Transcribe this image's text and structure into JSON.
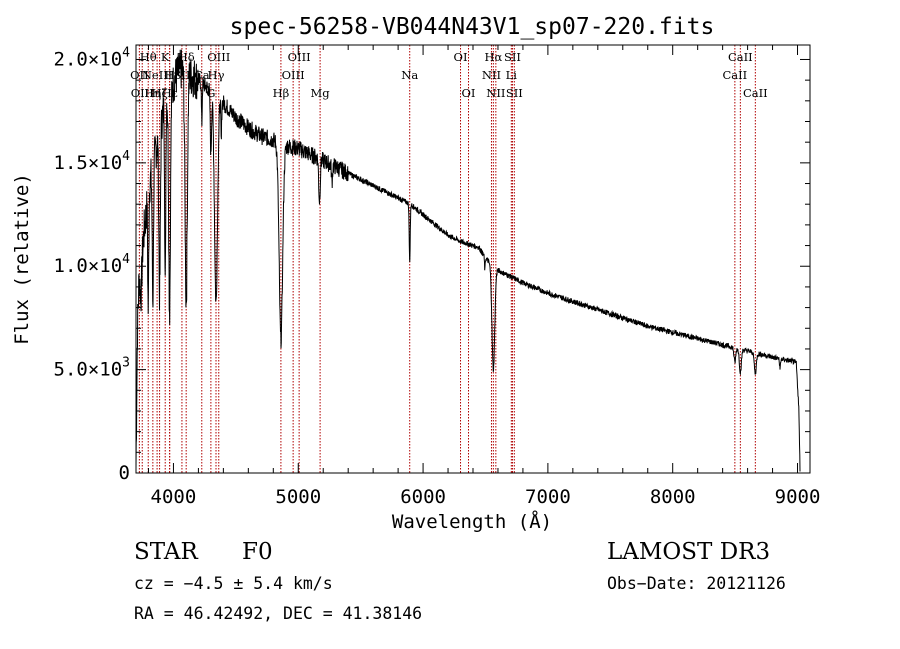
{
  "chart_data": {
    "type": "line",
    "title": "spec-56258-VB044N43V1_sp07-220.fits",
    "xlabel": "Wavelength (Å)",
    "ylabel": "Flux (relative)",
    "xlim": [
      3700,
      9100
    ],
    "ylim": [
      0,
      20700
    ],
    "xticks": [
      {
        "v": 4000,
        "label": "4000"
      },
      {
        "v": 5000,
        "label": "5000"
      },
      {
        "v": 6000,
        "label": "6000"
      },
      {
        "v": 7000,
        "label": "7000"
      },
      {
        "v": 8000,
        "label": "8000"
      },
      {
        "v": 9000,
        "label": "9000"
      }
    ],
    "yticks": [
      {
        "v": 0,
        "mant": "0",
        "exp": ""
      },
      {
        "v": 5000,
        "mant": "5.0×10",
        "exp": "3"
      },
      {
        "v": 10000,
        "mant": "1.0×10",
        "exp": "4"
      },
      {
        "v": 15000,
        "mant": "1.5×10",
        "exp": "4"
      },
      {
        "v": 20000,
        "mant": "2.0×10",
        "exp": "4"
      }
    ],
    "continuum": [
      [
        3700,
        200
      ],
      [
        3712,
        7000
      ],
      [
        3725,
        9500
      ],
      [
        3740,
        8500
      ],
      [
        3755,
        11000
      ],
      [
        3770,
        12000
      ],
      [
        3790,
        13000
      ],
      [
        3810,
        14000
      ],
      [
        3840,
        15000
      ],
      [
        3870,
        16000
      ],
      [
        3900,
        17000
      ],
      [
        3940,
        18000
      ],
      [
        3980,
        18500
      ],
      [
        4020,
        19200
      ],
      [
        4060,
        19500
      ],
      [
        4120,
        19300
      ],
      [
        4200,
        19000
      ],
      [
        4300,
        18500
      ],
      [
        4400,
        17900
      ],
      [
        4500,
        17200
      ],
      [
        4600,
        16700
      ],
      [
        4700,
        16300
      ],
      [
        4800,
        16100
      ],
      [
        4870,
        15900
      ],
      [
        4920,
        15800
      ],
      [
        5000,
        15700
      ],
      [
        5100,
        15400
      ],
      [
        5200,
        15100
      ],
      [
        5300,
        14800
      ],
      [
        5400,
        14500
      ],
      [
        5500,
        14200
      ],
      [
        5600,
        13900
      ],
      [
        5700,
        13600
      ],
      [
        5800,
        13300
      ],
      [
        5900,
        13000
      ],
      [
        6000,
        12500
      ],
      [
        6100,
        12000
      ],
      [
        6200,
        11500
      ],
      [
        6300,
        11200
      ],
      [
        6400,
        11000
      ],
      [
        6450,
        10900
      ],
      [
        6500,
        10400
      ],
      [
        6560,
        10000
      ],
      [
        6600,
        9800
      ],
      [
        6700,
        9500
      ],
      [
        6800,
        9200
      ],
      [
        7000,
        8700
      ],
      [
        7200,
        8300
      ],
      [
        7400,
        7900
      ],
      [
        7600,
        7500
      ],
      [
        7800,
        7100
      ],
      [
        8000,
        6800
      ],
      [
        8200,
        6500
      ],
      [
        8400,
        6200
      ],
      [
        8600,
        5900
      ],
      [
        8800,
        5600
      ],
      [
        8960,
        5400
      ],
      [
        8990,
        5300
      ],
      [
        9010,
        3200
      ],
      [
        9020,
        200
      ]
    ],
    "absorption": [
      {
        "c": 3798,
        "d": 5500,
        "w": 4
      },
      {
        "c": 3835,
        "d": 6500,
        "w": 5
      },
      {
        "c": 3889,
        "d": 8000,
        "w": 6
      },
      {
        "c": 3934,
        "d": 9000,
        "w": 4
      },
      {
        "c": 3969,
        "d": 10500,
        "w": 7
      },
      {
        "c": 4102,
        "d": 11000,
        "w": 9
      },
      {
        "c": 4227,
        "d": 2000,
        "w": 3
      },
      {
        "c": 4300,
        "d": 3000,
        "w": 5
      },
      {
        "c": 4341,
        "d": 10000,
        "w": 12
      },
      {
        "c": 4383,
        "d": 2000,
        "w": 3
      },
      {
        "c": 4861,
        "d": 9500,
        "w": 14
      },
      {
        "c": 5170,
        "d": 2000,
        "w": 6
      },
      {
        "c": 5270,
        "d": 800,
        "w": 4
      },
      {
        "c": 5893,
        "d": 2800,
        "w": 4
      },
      {
        "c": 6495,
        "d": 600,
        "w": 3
      },
      {
        "c": 6563,
        "d": 5000,
        "w": 11
      },
      {
        "c": 8498,
        "d": 700,
        "w": 7
      },
      {
        "c": 8542,
        "d": 1100,
        "w": 8
      },
      {
        "c": 8662,
        "d": 1000,
        "w": 8
      },
      {
        "c": 8860,
        "d": 400,
        "w": 5
      }
    ],
    "noise_amplitude": 260,
    "line_markers": [
      {
        "x": 3727,
        "label": "OII",
        "row": 1
      },
      {
        "x": 3750,
        "label": "OIII",
        "row": 2
      },
      {
        "x": 3798,
        "label": "Hθ",
        "row": 0
      },
      {
        "x": 3835,
        "label": "Hη",
        "row": 2
      },
      {
        "x": 3869,
        "label": "NeIII",
        "row": 1
      },
      {
        "x": 3889,
        "label": "Hζ",
        "row": 2
      },
      {
        "x": 3934,
        "label": "K",
        "row": 0
      },
      {
        "x": 3969,
        "label": "H",
        "row": 1
      },
      {
        "x": 3970,
        "label": "Hε",
        "row": 2
      },
      {
        "x": 4068,
        "label": "SII",
        "row": 1
      },
      {
        "x": 4102,
        "label": "Hδ",
        "row": 0
      },
      {
        "x": 4227,
        "label": "Ca",
        "row": 1
      },
      {
        "x": 4300,
        "label": "G",
        "row": 2
      },
      {
        "x": 4341,
        "label": "Hγ",
        "row": 1
      },
      {
        "x": 4363,
        "label": "OIII",
        "row": 0
      },
      {
        "x": 4861,
        "label": "Hβ",
        "row": 2
      },
      {
        "x": 4959,
        "label": "OIII",
        "row": 1
      },
      {
        "x": 5007,
        "label": "OIII",
        "row": 0
      },
      {
        "x": 5175,
        "label": "Mg",
        "row": 2
      },
      {
        "x": 5893,
        "label": "Na",
        "row": 1
      },
      {
        "x": 6300,
        "label": "OI",
        "row": 0
      },
      {
        "x": 6364,
        "label": "OI",
        "row": 2
      },
      {
        "x": 6548,
        "label": "NII",
        "row": 1
      },
      {
        "x": 6563,
        "label": "Hα",
        "row": 0
      },
      {
        "x": 6583,
        "label": "NII",
        "row": 2
      },
      {
        "x": 6707,
        "label": "Li",
        "row": 1
      },
      {
        "x": 6716,
        "label": "SII",
        "row": 0
      },
      {
        "x": 6731,
        "label": "SII",
        "row": 2
      },
      {
        "x": 8498,
        "label": "CaII",
        "row": 1
      },
      {
        "x": 8542,
        "label": "CaII",
        "row": 0
      },
      {
        "x": 8662,
        "label": "CaII",
        "row": 2
      }
    ],
    "marker_color": "#b00000",
    "line_color": "#000000"
  },
  "info": {
    "class_label": "STAR",
    "subclass": "F0",
    "survey": "LAMOST DR3",
    "redshift_text": "cz = −4.5 ± 5.4 km/s",
    "obs_date_text": "Obs−Date: 20121126",
    "coords_text": "RA =  46.42492, DEC =  41.38146"
  }
}
